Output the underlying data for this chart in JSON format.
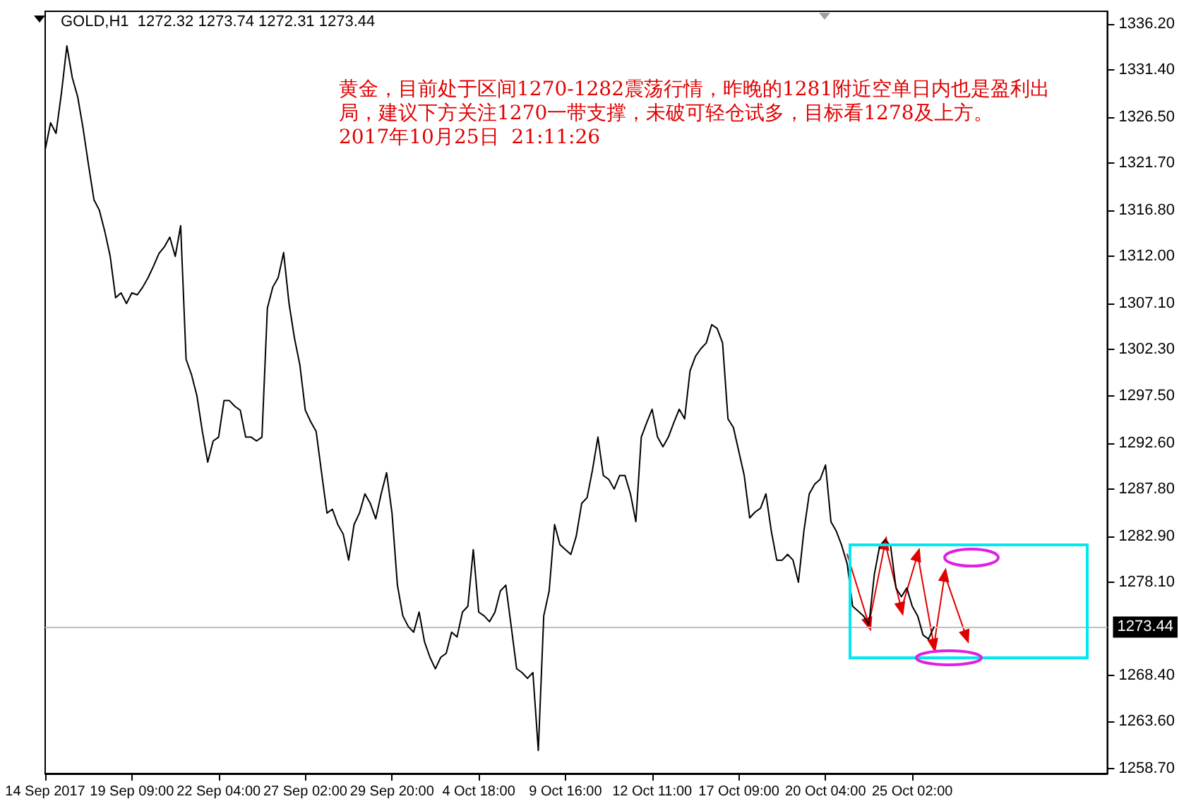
{
  "chart_data": {
    "type": "line",
    "title": "GOLD,H1  1272.32 1273.74 1272.31 1273.44",
    "annotations": [
      "黄金，目前处于区间1270-1282震荡行情，昨晚的1281附近空单日内也是盈利出局，建议下方关注1270一带支撑，未破可轻仓试多，目标看1278及上方。",
      "2017年10月25日  21:11:26"
    ],
    "categories": [
      "14 Sep 2017",
      null,
      null,
      null,
      null,
      null,
      null,
      null,
      null,
      null,
      null,
      null,
      null,
      null,
      null,
      null,
      "19 Sep 09:00",
      null,
      null,
      null,
      null,
      null,
      null,
      null,
      null,
      null,
      null,
      null,
      null,
      null,
      null,
      null,
      "22 Sep 04:00",
      null,
      null,
      null,
      null,
      null,
      null,
      null,
      null,
      null,
      null,
      null,
      null,
      null,
      null,
      null,
      "27 Sep 02:00",
      null,
      null,
      null,
      null,
      null,
      null,
      null,
      null,
      null,
      null,
      null,
      null,
      null,
      null,
      null,
      "29 Sep 20:00",
      null,
      null,
      null,
      null,
      null,
      null,
      null,
      null,
      null,
      null,
      null,
      null,
      null,
      null,
      null,
      "4 Oct 18:00",
      null,
      null,
      null,
      null,
      null,
      null,
      null,
      null,
      null,
      null,
      null,
      null,
      null,
      null,
      null,
      "9 Oct 16:00",
      null,
      null,
      null,
      null,
      null,
      null,
      null,
      null,
      null,
      null,
      null,
      null,
      null,
      null,
      null,
      "12 Oct 11:00",
      null,
      null,
      null,
      null,
      null,
      null,
      null,
      null,
      null,
      null,
      null,
      null,
      null,
      null,
      null,
      "17 Oct 09:00",
      null,
      null,
      null,
      null,
      null,
      null,
      null,
      null,
      null,
      null,
      null,
      null,
      null,
      null,
      null,
      "20 Oct 04:00",
      null,
      null,
      null,
      null,
      null,
      null,
      null,
      null,
      null,
      null,
      null,
      null,
      null,
      null,
      null,
      "25 Oct 02:00",
      null,
      null,
      null,
      null,
      null,
      null,
      null,
      null,
      null,
      null,
      null,
      null,
      null,
      null,
      null,
      null,
      null,
      null,
      null,
      null,
      null,
      null,
      null,
      null,
      null,
      null,
      null,
      null,
      null,
      null,
      null,
      null,
      null,
      null,
      null,
      null
    ],
    "series": [
      {
        "color": "#000000",
        "values": [
          1323.1,
          1325.9,
          1324.8,
          1329.0,
          1333.9,
          1330.6,
          1328.6,
          1325.3,
          1321.5,
          1317.9,
          1316.8,
          1314.6,
          1312.0,
          1307.7,
          1308.2,
          1307.1,
          1308.2,
          1308.0,
          1308.8,
          1309.8,
          1311.0,
          1312.3,
          1313.0,
          1314.0,
          1312.0,
          1315.2,
          1301.3,
          1299.7,
          1297.5,
          1293.8,
          1290.6,
          1292.8,
          1293.2,
          1297.0,
          1297.0,
          1296.4,
          1296.0,
          1293.2,
          1293.2,
          1292.8,
          1293.2,
          1306.6,
          1308.8,
          1309.8,
          1312.4,
          1307.1,
          1303.5,
          1300.7,
          1296.0,
          1294.8,
          1293.8,
          1289.5,
          1285.3,
          1285.7,
          1284.1,
          1283.1,
          1280.4,
          1284.1,
          1285.3,
          1287.3,
          1286.3,
          1284.7,
          1287.3,
          1289.5,
          1285.3,
          1277.8,
          1274.6,
          1273.5,
          1272.9,
          1275.0,
          1271.9,
          1270.3,
          1269.1,
          1270.3,
          1270.7,
          1272.9,
          1272.4,
          1275.0,
          1275.6,
          1281.5,
          1275.0,
          1274.6,
          1274.0,
          1275.0,
          1277.2,
          1277.8,
          1273.5,
          1269.1,
          1268.7,
          1268.1,
          1268.7,
          1260.6,
          1274.6,
          1277.2,
          1284.1,
          1282.0,
          1281.5,
          1281.0,
          1282.9,
          1286.3,
          1286.9,
          1289.8,
          1293.2,
          1289.2,
          1288.8,
          1287.8,
          1289.2,
          1289.2,
          1287.3,
          1284.4,
          1293.2,
          1294.7,
          1296.1,
          1293.2,
          1292.2,
          1293.2,
          1294.7,
          1296.1,
          1295.1,
          1300.1,
          1301.6,
          1302.4,
          1303.0,
          1304.9,
          1304.5,
          1303.0,
          1295.1,
          1294.2,
          1291.7,
          1289.2,
          1284.8,
          1285.4,
          1285.8,
          1287.3,
          1283.4,
          1280.4,
          1280.4,
          1281.0,
          1280.4,
          1278.1,
          1283.4,
          1287.3,
          1288.3,
          1288.8,
          1290.3,
          1284.4,
          1283.4,
          1281.9,
          1280.0,
          1275.6,
          1275.1,
          1274.6,
          1273.7,
          1278.9,
          1281.9,
          1282.5,
          1281.9,
          1277.5,
          1276.6,
          1277.5,
          1275.6,
          1274.6,
          1272.6,
          1272.2,
          1273.44,
          null,
          null,
          null,
          null,
          null,
          null,
          null,
          null,
          null,
          null,
          null,
          null,
          null,
          null,
          null,
          null,
          null,
          null,
          null,
          null,
          null,
          null,
          null,
          null,
          null,
          null,
          null,
          null,
          null,
          null,
          null,
          null
        ]
      },
      {
        "color": "#e00000",
        "marker": "triangle",
        "values": [
          null,
          null,
          null,
          null,
          null,
          null,
          null,
          null,
          null,
          null,
          null,
          null,
          null,
          null,
          null,
          null,
          null,
          null,
          null,
          null,
          null,
          null,
          null,
          null,
          null,
          null,
          null,
          null,
          null,
          null,
          null,
          null,
          null,
          null,
          null,
          null,
          null,
          null,
          null,
          null,
          null,
          null,
          null,
          null,
          null,
          null,
          null,
          null,
          null,
          null,
          null,
          null,
          null,
          null,
          null,
          null,
          null,
          null,
          null,
          null,
          null,
          null,
          null,
          null,
          null,
          null,
          null,
          null,
          null,
          null,
          null,
          null,
          null,
          null,
          null,
          null,
          null,
          null,
          null,
          null,
          null,
          null,
          null,
          null,
          null,
          null,
          null,
          null,
          null,
          null,
          null,
          null,
          null,
          null,
          null,
          null,
          null,
          null,
          null,
          null,
          null,
          null,
          null,
          null,
          null,
          null,
          null,
          null,
          null,
          null,
          null,
          null,
          null,
          null,
          null,
          null,
          null,
          null,
          null,
          null,
          null,
          null,
          null,
          null,
          null,
          null,
          null,
          null,
          null,
          null,
          null,
          null,
          null,
          null,
          null,
          null,
          null,
          null,
          null,
          null,
          null,
          null,
          null,
          null,
          null,
          null,
          null,
          null,
          1281.0,
          null,
          null,
          null,
          1273.7,
          null,
          null,
          1282.2,
          null,
          null,
          1275.3,
          null,
          null,
          1281.0,
          null,
          null,
          1271.5,
          null,
          1278.9,
          null,
          null,
          null,
          1272.4,
          null,
          null,
          null,
          null,
          null,
          null,
          null,
          null,
          null,
          null,
          null,
          null,
          null,
          null,
          null,
          null,
          null,
          null,
          null,
          null,
          null,
          null,
          null,
          null,
          null,
          null
        ]
      }
    ],
    "ylim": [
      1258.2,
      1337.5
    ],
    "yticks": [
      {
        "value": 1258.7,
        "label": "1258.70"
      },
      {
        "value": 1263.6,
        "label": "1263.60"
      },
      {
        "value": 1268.4,
        "label": "1268.40"
      },
      {
        "value": 1278.1,
        "label": "1278.10"
      },
      {
        "value": 1282.9,
        "label": "1282.90"
      },
      {
        "value": 1287.8,
        "label": "1287.80"
      },
      {
        "value": 1292.6,
        "label": "1292.60"
      },
      {
        "value": 1297.5,
        "label": "1297.50"
      },
      {
        "value": 1302.3,
        "label": "1302.30"
      },
      {
        "value": 1307.1,
        "label": "1307.10"
      },
      {
        "value": 1312.0,
        "label": "1312.00"
      },
      {
        "value": 1316.8,
        "label": "1316.80"
      },
      {
        "value": 1321.7,
        "label": "1321.70"
      },
      {
        "value": 1326.5,
        "label": "1326.50"
      },
      {
        "value": 1331.4,
        "label": "1331.40"
      },
      {
        "value": 1336.2,
        "label": "1336.20"
      }
    ],
    "ref_lines": [
      {
        "axis": "y",
        "value": 1273.44,
        "label": "1273.44",
        "color": "#c0c0c0"
      }
    ],
    "grid": false
  }
}
